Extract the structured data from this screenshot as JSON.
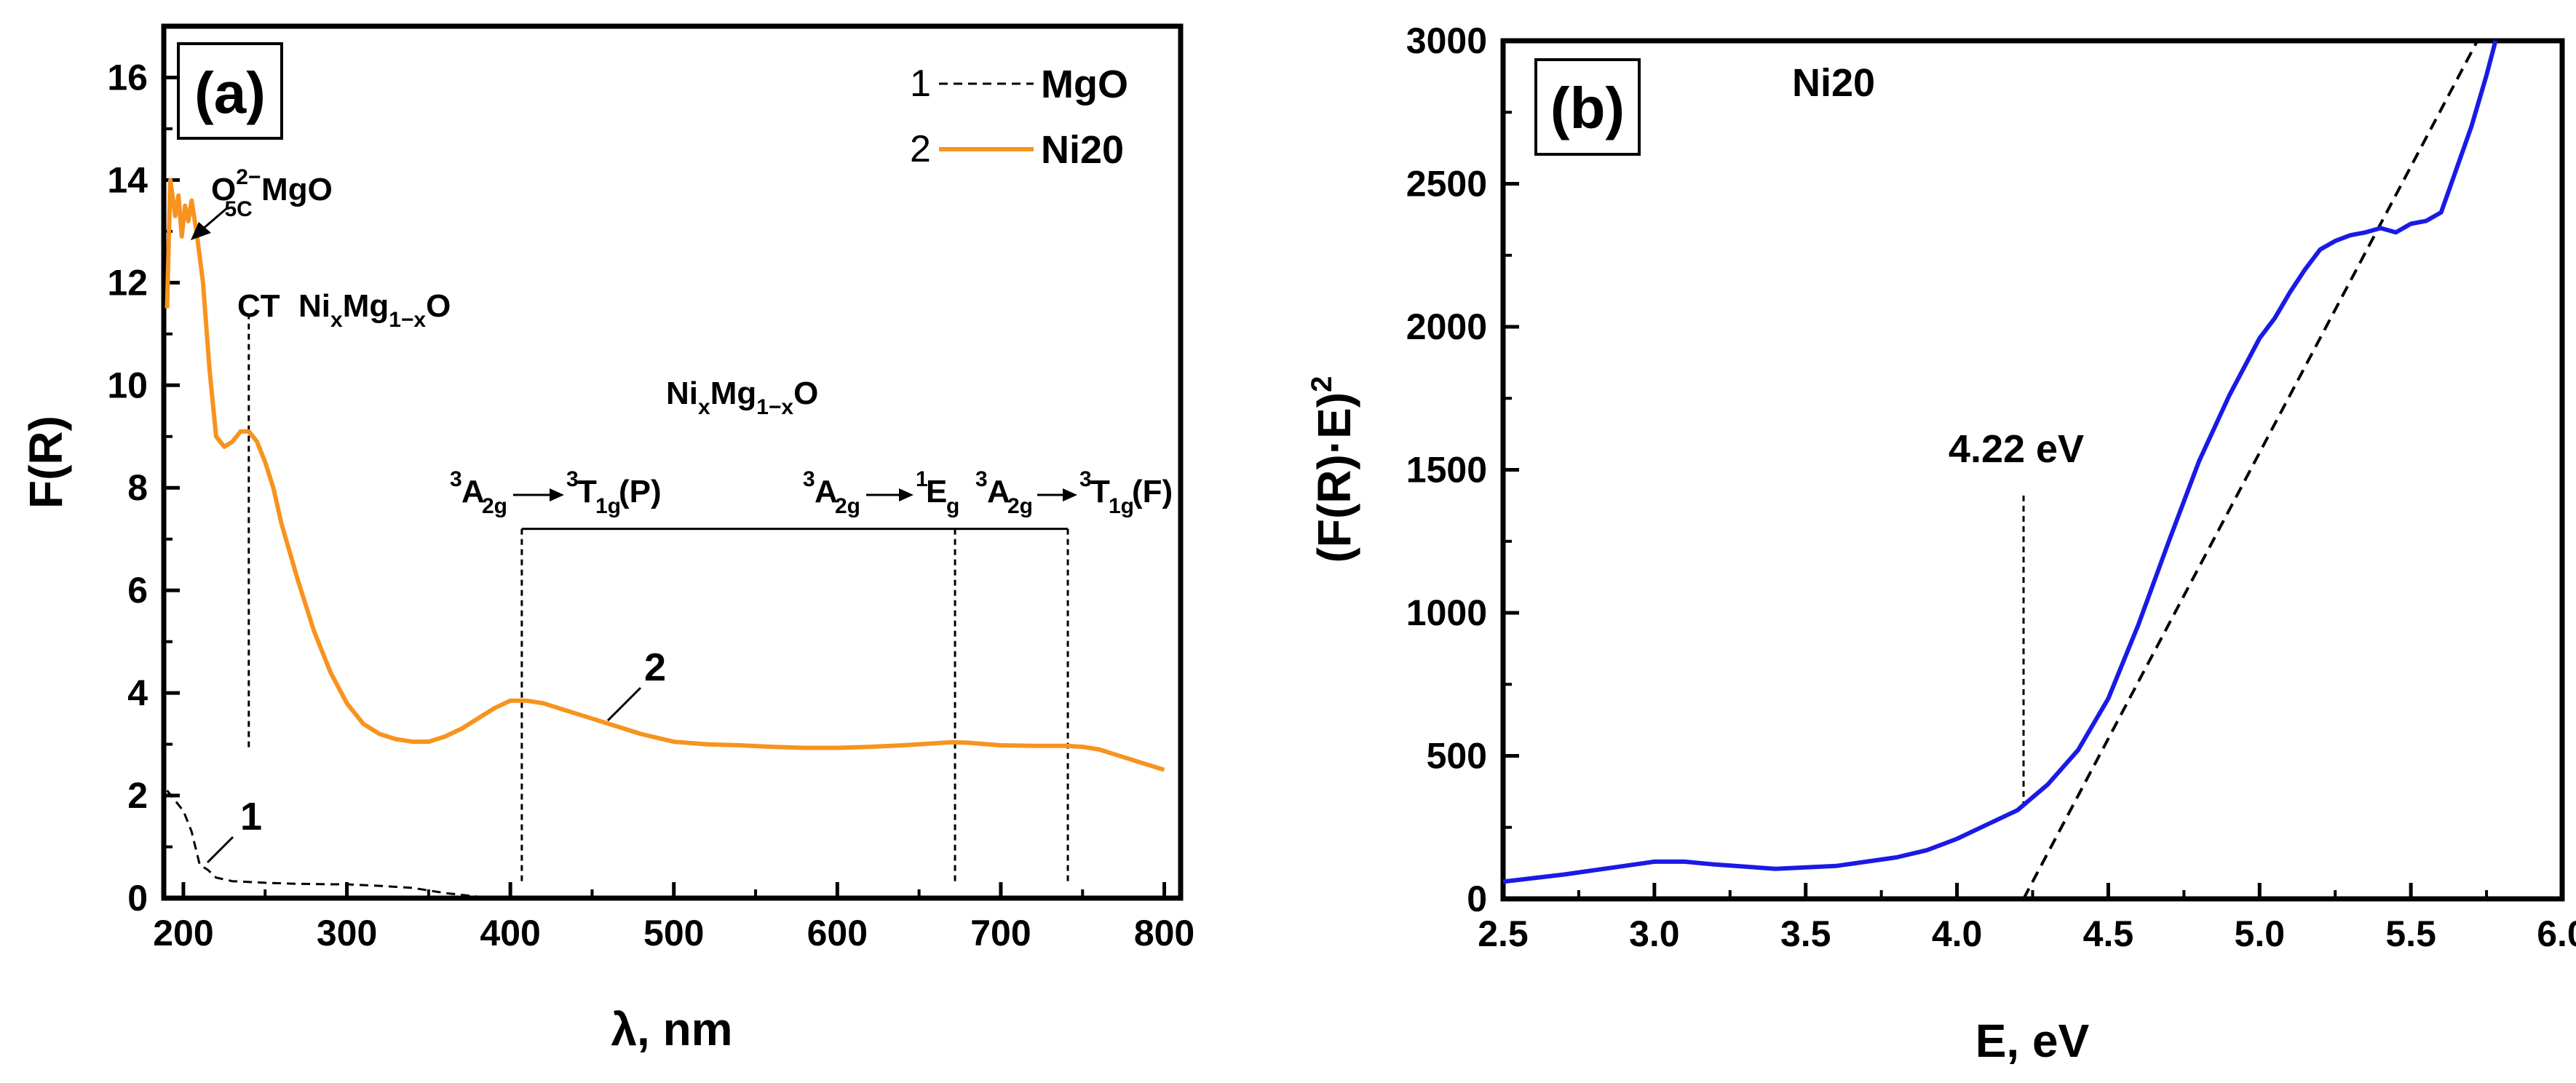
{
  "chart_data": [
    {
      "type": "line",
      "panel_label": "(a)",
      "xlabel": "λ, nm",
      "ylabel": "F(R)",
      "xlim": [
        188,
        810
      ],
      "ylim": [
        0,
        17
      ],
      "xticks": [
        200,
        300,
        400,
        500,
        600,
        700,
        800
      ],
      "yticks": [
        0,
        2,
        4,
        6,
        8,
        10,
        12,
        14,
        16
      ],
      "legend": {
        "position": "top-right",
        "entries": [
          {
            "number": "1",
            "name": "MgO",
            "style": "dashed",
            "color": "#000000"
          },
          {
            "number": "2",
            "name": "Ni20",
            "style": "solid",
            "color": "#F7931E"
          }
        ]
      },
      "series": [
        {
          "name": "Ni20",
          "curve_label": "2",
          "color": "#F7931E",
          "x": [
            190,
            192,
            195,
            197,
            199,
            201,
            203,
            205,
            208,
            212,
            216,
            220,
            225,
            230,
            235,
            240,
            245,
            250,
            255,
            260,
            270,
            280,
            290,
            300,
            310,
            320,
            330,
            340,
            350,
            360,
            370,
            380,
            390,
            400,
            410,
            420,
            440,
            460,
            480,
            500,
            520,
            540,
            560,
            580,
            600,
            620,
            640,
            660,
            670,
            680,
            700,
            720,
            740,
            750,
            760,
            770,
            780,
            790,
            800
          ],
          "y": [
            11.5,
            14.0,
            13.3,
            13.7,
            12.9,
            13.5,
            13.2,
            13.6,
            13.0,
            12.0,
            10.3,
            9.0,
            8.8,
            8.9,
            9.1,
            9.1,
            8.9,
            8.5,
            8.0,
            7.3,
            6.2,
            5.2,
            4.4,
            3.8,
            3.4,
            3.2,
            3.1,
            3.05,
            3.05,
            3.15,
            3.3,
            3.5,
            3.7,
            3.85,
            3.85,
            3.8,
            3.6,
            3.4,
            3.2,
            3.05,
            3.0,
            2.98,
            2.95,
            2.93,
            2.93,
            2.95,
            2.98,
            3.02,
            3.04,
            3.03,
            2.98,
            2.97,
            2.97,
            2.95,
            2.9,
            2.8,
            2.7,
            2.6,
            2.5
          ]
        },
        {
          "name": "MgO",
          "curve_label": "1",
          "color": "#000000",
          "x": [
            190,
            195,
            200,
            205,
            210,
            215,
            220,
            230,
            250,
            270,
            290,
            300,
            320,
            340,
            360,
            380,
            400
          ],
          "y": [
            2.1,
            1.9,
            1.7,
            1.3,
            0.65,
            0.55,
            0.4,
            0.33,
            0.3,
            0.28,
            0.27,
            0.27,
            0.24,
            0.2,
            0.1,
            0.03,
            0.0
          ]
        }
      ],
      "annotations": {
        "o5c": {
          "main": "O",
          "sup": "2−",
          "sub": "5C",
          "tail": " MgO",
          "x": 200,
          "y": 13.0
        },
        "ct": {
          "text": "CT",
          "x": 240
        },
        "nimgo1": {
          "a": "Ni",
          "b": "x",
          "c": "Mg",
          "d": "1−x",
          "e": "O"
        },
        "nimgo2": {
          "a": "Ni",
          "b": "x",
          "c": "Mg",
          "d": "1−x",
          "e": "O"
        },
        "trans1": {
          "pre": "3",
          "a": "A",
          "asub": "2g",
          "pre2": "3",
          "b": "T",
          "bsub": "1g",
          "tail": "(P)",
          "x": 407
        },
        "trans2": {
          "pre": "3",
          "a": "A",
          "asub": "2g",
          "pre2": "1",
          "b": "E",
          "bsub": "g",
          "x": 672
        },
        "trans3": {
          "pre": "3",
          "a": "A",
          "asub": "2g",
          "pre2": "3",
          "b": "T",
          "bsub": "1g",
          "tail": "(F)",
          "x": 741
        }
      }
    },
    {
      "type": "line",
      "panel_label": "(b)",
      "sample_label": "Ni20",
      "xlabel": "E, eV",
      "ylabel": "(F(R)·E)",
      "ylabel_sup": "2",
      "xlim": [
        2.5,
        6.0
      ],
      "ylim": [
        0,
        3000
      ],
      "xticks": [
        "2.5",
        "3.0",
        "3.5",
        "4.0",
        "4.5",
        "5.0",
        "5.5",
        "6.0"
      ],
      "yticks": [
        0,
        500,
        1000,
        1500,
        2000,
        2500,
        3000
      ],
      "series": [
        {
          "name": "Ni20",
          "color": "#1A1AE6",
          "x": [
            2.5,
            2.7,
            2.9,
            3.0,
            3.1,
            3.2,
            3.4,
            3.6,
            3.8,
            3.9,
            4.0,
            4.1,
            4.2,
            4.3,
            4.4,
            4.5,
            4.6,
            4.7,
            4.8,
            4.9,
            5.0,
            5.05,
            5.1,
            5.15,
            5.2,
            5.25,
            5.3,
            5.35,
            5.4,
            5.45,
            5.5,
            5.55,
            5.6,
            5.65,
            5.7,
            5.75,
            5.78
          ],
          "y": [
            60,
            85,
            115,
            130,
            130,
            120,
            105,
            115,
            145,
            170,
            210,
            260,
            310,
            400,
            520,
            700,
            960,
            1250,
            1530,
            1760,
            1960,
            2030,
            2120,
            2200,
            2270,
            2300,
            2320,
            2330,
            2345,
            2330,
            2360,
            2370,
            2400,
            2550,
            2700,
            2880,
            3000
          ]
        }
      ],
      "tangent": {
        "x": [
          4.22,
          5.72
        ],
        "y": [
          0,
          3000
        ],
        "style": "dashed"
      },
      "bandgap_marker": {
        "label": "4.22 eV",
        "x": 4.22
      }
    }
  ]
}
